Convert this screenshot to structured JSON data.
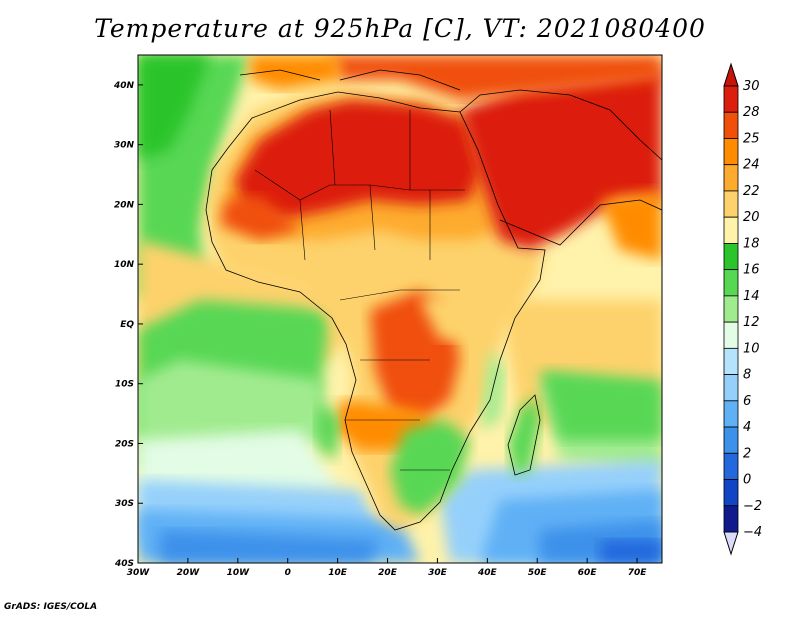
{
  "title": "Temperature at 925hPa [C], VT: 2021080400",
  "footer": "GrADS: IGES/COLA",
  "map": {
    "lon_range": [
      -30,
      75
    ],
    "lat_range": [
      -40,
      45
    ],
    "lon_ticks": [
      {
        "value": -30,
        "label": "30W"
      },
      {
        "value": -20,
        "label": "20W"
      },
      {
        "value": -10,
        "label": "10W"
      },
      {
        "value": 0,
        "label": "0"
      },
      {
        "value": 10,
        "label": "10E"
      },
      {
        "value": 20,
        "label": "20E"
      },
      {
        "value": 30,
        "label": "30E"
      },
      {
        "value": 40,
        "label": "40E"
      },
      {
        "value": 50,
        "label": "50E"
      },
      {
        "value": 60,
        "label": "60E"
      },
      {
        "value": 70,
        "label": "70E"
      }
    ],
    "lat_ticks": [
      {
        "value": 40,
        "label": "40N"
      },
      {
        "value": 30,
        "label": "30N"
      },
      {
        "value": 20,
        "label": "20N"
      },
      {
        "value": 10,
        "label": "10N"
      },
      {
        "value": 0,
        "label": "EQ"
      },
      {
        "value": -10,
        "label": "10S"
      },
      {
        "value": -20,
        "label": "20S"
      },
      {
        "value": -30,
        "label": "30S"
      },
      {
        "value": -40,
        "label": "40S"
      }
    ]
  },
  "colorbar": {
    "levels": [
      30,
      28,
      25,
      24,
      22,
      20,
      18,
      16,
      14,
      12,
      10,
      8,
      6,
      4,
      2,
      0,
      -2,
      -4
    ],
    "colors": [
      "#dc1e0e",
      "#f0500a",
      "#ff8c00",
      "#fdab2e",
      "#fdd26c",
      "#fff2aa",
      "#2bc42a",
      "#58d754",
      "#a1eb8f",
      "#e2fce5",
      "#b6e3fc",
      "#95d0fb",
      "#5fb0f5",
      "#3c91ea",
      "#2468dd",
      "#1245c5",
      "#101a8c"
    ],
    "over_color": "#c8140a",
    "under_color": "#dcdcfa"
  }
}
